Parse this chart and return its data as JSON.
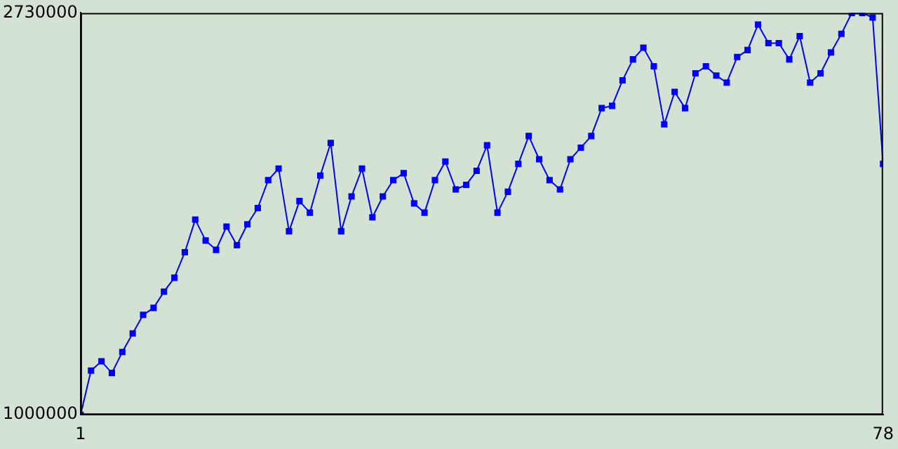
{
  "chart_data": {
    "type": "line",
    "x": [
      1,
      2,
      3,
      4,
      5,
      6,
      7,
      8,
      9,
      10,
      11,
      12,
      13,
      14,
      15,
      16,
      17,
      18,
      19,
      20,
      21,
      22,
      23,
      24,
      25,
      26,
      27,
      28,
      29,
      30,
      31,
      32,
      33,
      34,
      35,
      36,
      37,
      38,
      39,
      40,
      41,
      42,
      43,
      44,
      45,
      46,
      47,
      48,
      49,
      50,
      51,
      52,
      53,
      54,
      55,
      56,
      57,
      58,
      59,
      60,
      61,
      62,
      63,
      64,
      65,
      66,
      67,
      68,
      69,
      70,
      71,
      72,
      73,
      74,
      75,
      76,
      77,
      78
    ],
    "series": [
      {
        "color": "#0000ff",
        "values": [
          1000000,
          1190000,
          1230000,
          1180000,
          1270000,
          1350000,
          1430000,
          1460000,
          1530000,
          1590000,
          1700000,
          1840000,
          1750000,
          1710000,
          1810000,
          1730000,
          1820000,
          1890000,
          2010000,
          2060000,
          1790000,
          1920000,
          1870000,
          2030000,
          2170000,
          1790000,
          1940000,
          2060000,
          1850000,
          1940000,
          2010000,
          2040000,
          1910000,
          1870000,
          2010000,
          2090000,
          1970000,
          1990000,
          2050000,
          2160000,
          1870000,
          1960000,
          2080000,
          2200000,
          2100000,
          2010000,
          1970000,
          2100000,
          2150000,
          2200000,
          2320000,
          2330000,
          2440000,
          2530000,
          2580000,
          2500000,
          2250000,
          2390000,
          2320000,
          2470000,
          2500000,
          2460000,
          2430000,
          2540000,
          2570000,
          2680000,
          2600000,
          2600000,
          2530000,
          2630000,
          2430000,
          2470000,
          2560000,
          2640000,
          2730000,
          2730000,
          2710000,
          2080000
        ]
      }
    ],
    "xlim": [
      1,
      78
    ],
    "xticks": [
      1,
      78
    ],
    "ylim": [
      1000000,
      2730000
    ],
    "yticks": [
      1000000,
      2730000
    ],
    "grid": false,
    "legend": false,
    "marker": "square",
    "line_style": "solid"
  }
}
